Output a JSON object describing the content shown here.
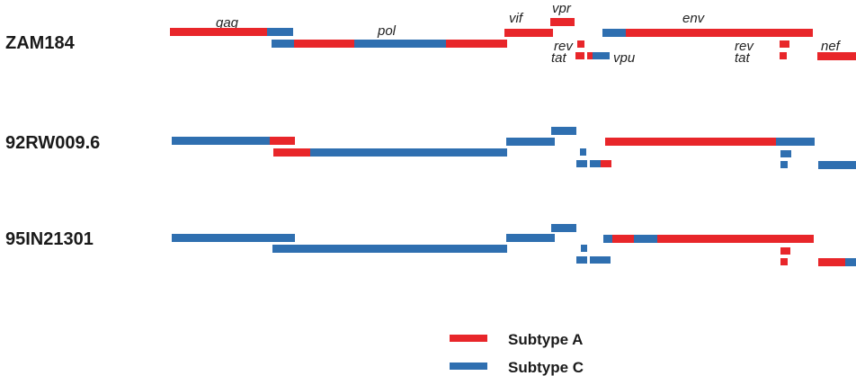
{
  "colors": {
    "subtype_a": "#e8262a",
    "subtype_c": "#2f6fb0"
  },
  "strains": [
    {
      "name": "ZAM184"
    },
    {
      "name": "92RW009.6"
    },
    {
      "name": "95IN21301"
    }
  ],
  "gene_labels": {
    "gag": "gag",
    "pol": "pol",
    "vif": "vif",
    "vpr": "vpr",
    "env": "env",
    "rev1": "rev",
    "tat1": "tat",
    "vpu": "vpu",
    "rev2": "rev",
    "tat2": "tat",
    "nef": "nef"
  },
  "legend": {
    "subtype_a": "Subtype A",
    "subtype_c": "Subtype C"
  }
}
